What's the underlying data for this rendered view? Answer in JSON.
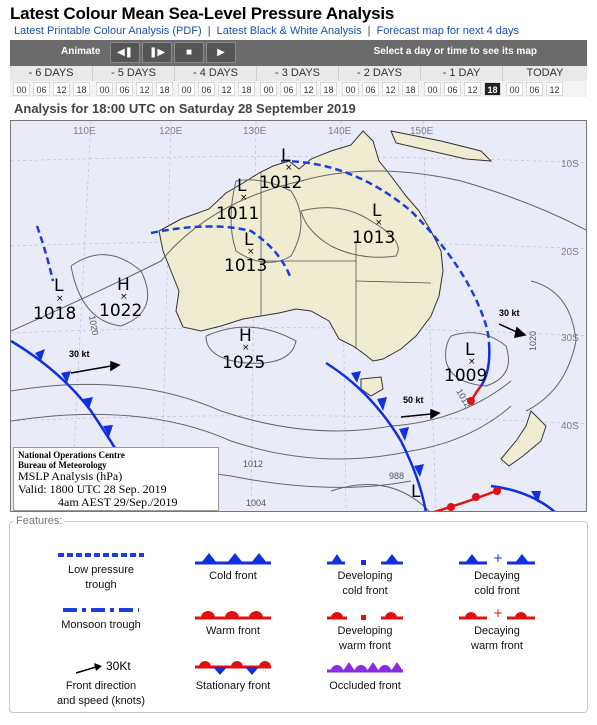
{
  "header": {
    "title": "Latest Colour Mean Sea-Level Pressure Analysis",
    "links": [
      "Latest Printable Colour Analysis (PDF)",
      "Latest Black & White Analysis",
      "Forecast map for next 4 days"
    ],
    "separator": "|"
  },
  "animation_bar": {
    "label": "Animate",
    "hint": "Select a day or time to see its map",
    "controls": [
      "step-back",
      "step-forward",
      "stop",
      "play"
    ]
  },
  "days": [
    "- 6 DAYS",
    "- 5 DAYS",
    "- 4 DAYS",
    "- 3 DAYS",
    "- 2 DAYS",
    "- 1 DAY",
    "TODAY"
  ],
  "hours": [
    "00",
    "06",
    "12",
    "18"
  ],
  "today_hours": [
    "00",
    "06",
    "12"
  ],
  "selected_hour": "18",
  "analysis_heading": "Analysis for 18:00 UTC on Saturday 28 September 2019",
  "map": {
    "longitudes": [
      "110E",
      "120E",
      "130E",
      "140E",
      "150E"
    ],
    "latitudes": [
      "10S",
      "20S",
      "30S",
      "40S"
    ],
    "pressure_centres": [
      {
        "type": "L",
        "value": "1012"
      },
      {
        "type": "L",
        "value": "1011"
      },
      {
        "type": "L",
        "value": "1013"
      },
      {
        "type": "L",
        "value": "1013"
      },
      {
        "type": "L",
        "value": "1018"
      },
      {
        "type": "H",
        "value": "1022"
      },
      {
        "type": "H",
        "value": "1025"
      },
      {
        "type": "L",
        "value": "1009"
      },
      {
        "type": "L",
        "value": ""
      }
    ],
    "isobar_labels": [
      "1020",
      "1012",
      "1004",
      "988",
      "1020",
      "1012"
    ],
    "wind_labels": [
      "30 kt",
      "50 kt",
      "30 kt"
    ],
    "credit": {
      "org1": "National Operations Centre",
      "org2": "Bureau of Meteorology",
      "product": "MSLP Analysis (hPa)",
      "valid": "Valid: 1800 UTC 28 Sep. 2019",
      "local": "4am AEST 29/Sep./2019"
    },
    "colors": {
      "cold_front": "#1030e0",
      "warm_front": "#e01010",
      "trough": "#1a3ee0",
      "land": "#efecd2",
      "sea": "#e9ecf8"
    }
  },
  "features": {
    "title": "Features:",
    "items": [
      {
        "label1": "Low pressure",
        "label2": "trough",
        "icon": "low-pressure-trough"
      },
      {
        "label1": "Cold front",
        "label2": "",
        "icon": "cold-front"
      },
      {
        "label1": "Developing",
        "label2": "cold front",
        "icon": "developing-cold-front"
      },
      {
        "label1": "Decaying",
        "label2": "cold front",
        "icon": "decaying-cold-front"
      },
      {
        "label1": "Monsoon trough",
        "label2": "",
        "icon": "monsoon-trough"
      },
      {
        "label1": "Warm front",
        "label2": "",
        "icon": "warm-front"
      },
      {
        "label1": "Developing",
        "label2": "warm front",
        "icon": "developing-warm-front"
      },
      {
        "label1": "Decaying",
        "label2": "warm front",
        "icon": "decaying-warm-front"
      },
      {
        "label1": "Front direction",
        "label2": "and speed (knots)",
        "icon": "front-direction-arrow",
        "icon_text": "30Kt"
      },
      {
        "label1": "Stationary front",
        "label2": "",
        "icon": "stationary-front"
      },
      {
        "label1": "Occluded front",
        "label2": "",
        "icon": "occluded-front"
      }
    ]
  }
}
